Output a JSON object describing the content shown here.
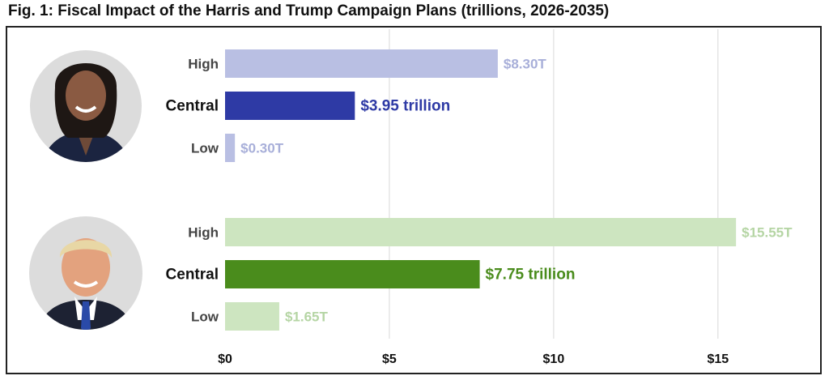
{
  "chart_data": {
    "type": "bar",
    "orientation": "horizontal",
    "title": "Fig. 1: Fiscal Impact of the Harris and Trump Campaign Plans (trillions, 2026-2035)",
    "xlim": [
      0,
      17
    ],
    "xticks": [
      0,
      5,
      10,
      15
    ],
    "xtick_labels": [
      "$0",
      "$5",
      "$10",
      "$15"
    ],
    "grid": "vertical",
    "groups": [
      {
        "name": "Harris",
        "portrait": "harris-portrait",
        "bars": [
          {
            "label": "High",
            "value": 8.3,
            "value_label": "$8.30T",
            "color": "#b9bfe3",
            "label_color": "#a8afd9",
            "emphasis": false
          },
          {
            "label": "Central",
            "value": 3.95,
            "value_label": "$3.95 trillion",
            "color": "#2e3aa5",
            "label_color": "#2e3aa5",
            "emphasis": true
          },
          {
            "label": "Low",
            "value": 0.3,
            "value_label": "$0.30T",
            "color": "#b9bfe3",
            "label_color": "#a8afd9",
            "emphasis": false
          }
        ]
      },
      {
        "name": "Trump",
        "portrait": "trump-portrait",
        "bars": [
          {
            "label": "High",
            "value": 15.55,
            "value_label": "$15.55T",
            "color": "#cde5c0",
            "label_color": "#b5d5a4",
            "emphasis": false
          },
          {
            "label": "Central",
            "value": 7.75,
            "value_label": "$7.75 trillion",
            "color": "#4a8c1c",
            "label_color": "#4a8c1c",
            "emphasis": true
          },
          {
            "label": "Low",
            "value": 1.65,
            "value_label": "$1.65T",
            "color": "#cde5c0",
            "label_color": "#b5d5a4",
            "emphasis": false
          }
        ]
      }
    ]
  }
}
